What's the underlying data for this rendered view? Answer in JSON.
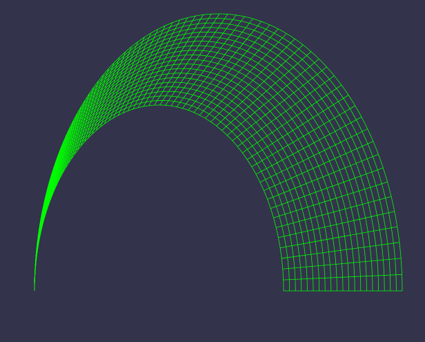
{
  "colors": {
    "background": "#33334c",
    "mesh_line": "#00ff00"
  },
  "mesh": {
    "shape": "half-annulus wireframe",
    "radial_divisions": 20,
    "circumferential_divisions": 90
  }
}
